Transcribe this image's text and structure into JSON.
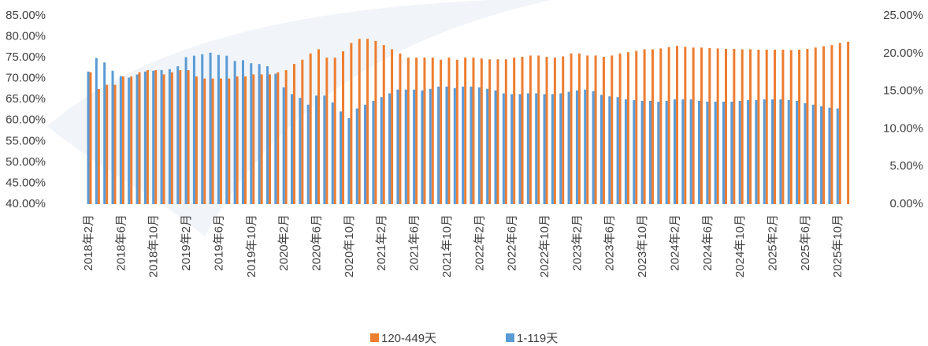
{
  "chart_data": {
    "type": "bar",
    "categories": [
      "2018年2月",
      null,
      null,
      null,
      "2018年6月",
      null,
      null,
      null,
      "2018年10月",
      null,
      null,
      null,
      "2019年2月",
      null,
      null,
      null,
      "2019年6月",
      null,
      null,
      null,
      "2019年10月",
      null,
      null,
      null,
      "2020年2月",
      null,
      null,
      null,
      "2020年6月",
      null,
      null,
      null,
      "2020年10月",
      null,
      null,
      null,
      "2021年2月",
      null,
      null,
      null,
      "2021年6月",
      null,
      null,
      null,
      "2021年10月",
      null,
      null,
      null,
      "2022年2月",
      null,
      null,
      null,
      "2022年6月",
      null,
      null,
      null,
      "2022年10月",
      null,
      null,
      null,
      "2023年2月",
      null,
      null,
      null,
      "2023年6月",
      null,
      null,
      null,
      "2023年10月",
      null,
      null,
      null,
      "2024年2月",
      null,
      null,
      null,
      "2024年6月",
      null,
      null,
      null,
      "2024年10月",
      null,
      null,
      null,
      "2025年2月",
      null,
      null,
      null,
      "2025年6月",
      null,
      null,
      null,
      "2025年10月",
      null
    ],
    "series": [
      {
        "name": "120-449天",
        "color": "#ed7d31",
        "values": [
          71.5,
          67.5,
          68.5,
          68.5,
          70.5,
          70.5,
          71.5,
          72,
          72,
          71,
          71.5,
          72,
          72,
          70.5,
          70,
          70,
          70,
          70,
          70.5,
          70.5,
          71,
          71,
          71,
          71.5,
          72,
          73.5,
          74.5,
          76,
          77,
          75,
          75,
          76.5,
          78.5,
          79.5,
          79.5,
          79,
          78,
          77,
          76,
          75,
          75,
          75,
          75,
          74.5,
          75,
          74.5,
          75,
          75,
          74.8,
          74.6,
          74.6,
          74.6,
          75,
          75.2,
          75.5,
          75.5,
          75.2,
          75,
          75.3,
          76,
          76,
          75.5,
          75.5,
          75.2,
          75.5,
          76,
          76.3,
          76.6,
          77,
          77,
          77.2,
          77.5,
          77.8,
          77.6,
          77.4,
          77.4,
          77.3,
          77.2,
          77.1,
          77.1,
          77,
          77,
          76.9,
          76.9,
          76.9,
          76.9,
          76.8,
          76.9,
          77.1,
          77.4,
          77.7,
          78,
          78.5,
          78.8
        ]
      },
      {
        "name": "1-119天",
        "color": "#5b9bd5",
        "axis": "y2",
        "values": [
          17.6,
          19.4,
          18.8,
          17.7,
          17,
          16.8,
          17.2,
          17.6,
          17.7,
          17.8,
          17.9,
          18.3,
          19.5,
          19.7,
          19.9,
          20.1,
          19.8,
          19.7,
          19,
          19.1,
          18.7,
          18.6,
          18.3,
          17.3,
          15.5,
          14.6,
          14.1,
          13.2,
          14.4,
          14.4,
          13.5,
          12.3,
          11.4,
          12.7,
          13.2,
          13.7,
          14.2,
          14.7,
          15.2,
          15.2,
          15.2,
          15.1,
          15.3,
          15.6,
          15.6,
          15.4,
          15.6,
          15.6,
          15.5,
          15.3,
          15.1,
          14.7,
          14.6,
          14.6,
          14.7,
          14.7,
          14.6,
          14.6,
          14.7,
          14.9,
          15.1,
          15.2,
          15,
          14.5,
          14.3,
          14.2,
          13.9,
          13.8,
          13.7,
          13.7,
          13.6,
          13.7,
          13.9,
          13.9,
          13.9,
          13.7,
          13.6,
          13.6,
          13.6,
          13.6,
          13.7,
          13.8,
          13.8,
          13.9,
          13.9,
          13.9,
          13.8,
          13.7,
          13.4,
          13.2,
          13,
          12.8,
          12.7,
          null
        ]
      }
    ],
    "ylim": [
      40,
      85
    ],
    "yticks": [
      {
        "value": 40,
        "label": "40.00%"
      },
      {
        "value": 45,
        "label": "45.00%"
      },
      {
        "value": 50,
        "label": "50.00%"
      },
      {
        "value": 55,
        "label": "55.00%"
      },
      {
        "value": 60,
        "label": "60.00%"
      },
      {
        "value": 65,
        "label": "65.00%"
      },
      {
        "value": 70,
        "label": "70.00%"
      },
      {
        "value": 75,
        "label": "75.00%"
      },
      {
        "value": 80,
        "label": "80.00%"
      },
      {
        "value": 85,
        "label": "85.00%"
      }
    ],
    "y2lim": [
      0,
      25
    ],
    "y2ticks": [
      {
        "value": 0,
        "label": "0.00%"
      },
      {
        "value": 5,
        "label": "5.00%"
      },
      {
        "value": 10,
        "label": "10.00%"
      },
      {
        "value": 15,
        "label": "15.00%"
      },
      {
        "value": 20,
        "label": "20.00%"
      },
      {
        "value": 25,
        "label": "25.00%"
      }
    ],
    "grid": false,
    "legend": "bottom"
  }
}
